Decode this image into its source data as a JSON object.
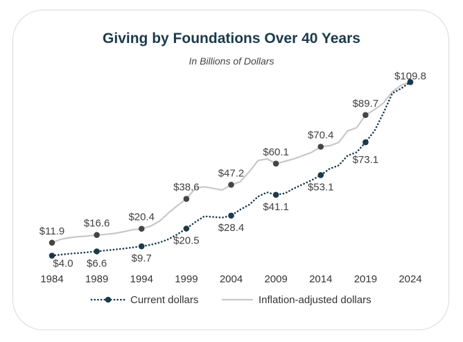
{
  "chart_data": {
    "type": "line",
    "title": "Giving by Foundations Over 40 Years",
    "subtitle": "In Billions of Dollars",
    "xlabel": "",
    "ylabel": "",
    "x_ticks": [
      "1984",
      "1989",
      "1994",
      "1999",
      "2004",
      "2009",
      "2014",
      "2019",
      "2024"
    ],
    "ylim": [
      0,
      115
    ],
    "grid": false,
    "legend_placement": "bottom",
    "series": [
      {
        "name": "Current dollars",
        "color": "#1b3a4b",
        "style": "dotted",
        "x": [
          1984,
          1985,
          1986,
          1987,
          1988,
          1989,
          1990,
          1991,
          1992,
          1993,
          1994,
          1995,
          1996,
          1997,
          1998,
          1999,
          2000,
          2001,
          2002,
          2003,
          2004,
          2005,
          2006,
          2007,
          2008,
          2009,
          2010,
          2011,
          2012,
          2013,
          2014,
          2015,
          2016,
          2017,
          2018,
          2019,
          2020,
          2021,
          2022,
          2023,
          2024
        ],
        "values": [
          4.0,
          4.6,
          5.2,
          5.6,
          6.1,
          6.6,
          7.2,
          7.7,
          8.3,
          9.0,
          9.7,
          10.6,
          12.0,
          14.0,
          17.0,
          20.5,
          24.5,
          28.0,
          27.6,
          27.2,
          28.4,
          32.0,
          35.0,
          40.0,
          42.6,
          41.1,
          42.0,
          45.0,
          47.5,
          50.0,
          53.1,
          57.0,
          59.0,
          65.0,
          67.0,
          73.1,
          80.0,
          91.0,
          103.0,
          106.0,
          109.8
        ],
        "labeled_points": [
          {
            "x": 1984,
            "label": "$4.0"
          },
          {
            "x": 1989,
            "label": "$6.6"
          },
          {
            "x": 1994,
            "label": "$9.7"
          },
          {
            "x": 1999,
            "label": "$20.5"
          },
          {
            "x": 2004,
            "label": "$28.4"
          },
          {
            "x": 2009,
            "label": "$41.1"
          },
          {
            "x": 2014,
            "label": "$53.1"
          },
          {
            "x": 2019,
            "label": "$73.1"
          },
          {
            "x": 2024,
            "label": ""
          }
        ]
      },
      {
        "name": "Inflation-adjusted dollars",
        "color": "#c8c8c8",
        "style": "solid",
        "x": [
          1984,
          1985,
          1986,
          1987,
          1988,
          1989,
          1990,
          1991,
          1992,
          1993,
          1994,
          1995,
          1996,
          1997,
          1998,
          1999,
          2000,
          2001,
          2002,
          2003,
          2004,
          2005,
          2006,
          2007,
          2008,
          2009,
          2010,
          2011,
          2012,
          2013,
          2014,
          2015,
          2016,
          2017,
          2018,
          2019,
          2020,
          2021,
          2022,
          2023,
          2024
        ],
        "values": [
          11.9,
          14.0,
          15.0,
          15.6,
          16.0,
          16.6,
          17.0,
          17.6,
          18.6,
          19.8,
          20.4,
          22.0,
          25.0,
          30.0,
          34.5,
          38.6,
          45.0,
          46.0,
          45.0,
          44.0,
          47.2,
          49.0,
          55.0,
          62.0,
          63.0,
          60.1,
          61.5,
          63.0,
          65.0,
          67.0,
          70.4,
          71.0,
          73.0,
          80.0,
          82.0,
          89.7,
          93.0,
          97.0,
          104.0,
          108.0,
          109.8
        ],
        "labeled_points": [
          {
            "x": 1984,
            "label": "$11.9"
          },
          {
            "x": 1989,
            "label": "$16.6"
          },
          {
            "x": 1994,
            "label": "$20.4"
          },
          {
            "x": 1999,
            "label": "$38.6"
          },
          {
            "x": 2004,
            "label": "$47.2"
          },
          {
            "x": 2009,
            "label": "$60.1"
          },
          {
            "x": 2014,
            "label": "$70.4"
          },
          {
            "x": 2019,
            "label": "$89.7"
          },
          {
            "x": 2024,
            "label": "$109.8"
          }
        ]
      }
    ]
  }
}
